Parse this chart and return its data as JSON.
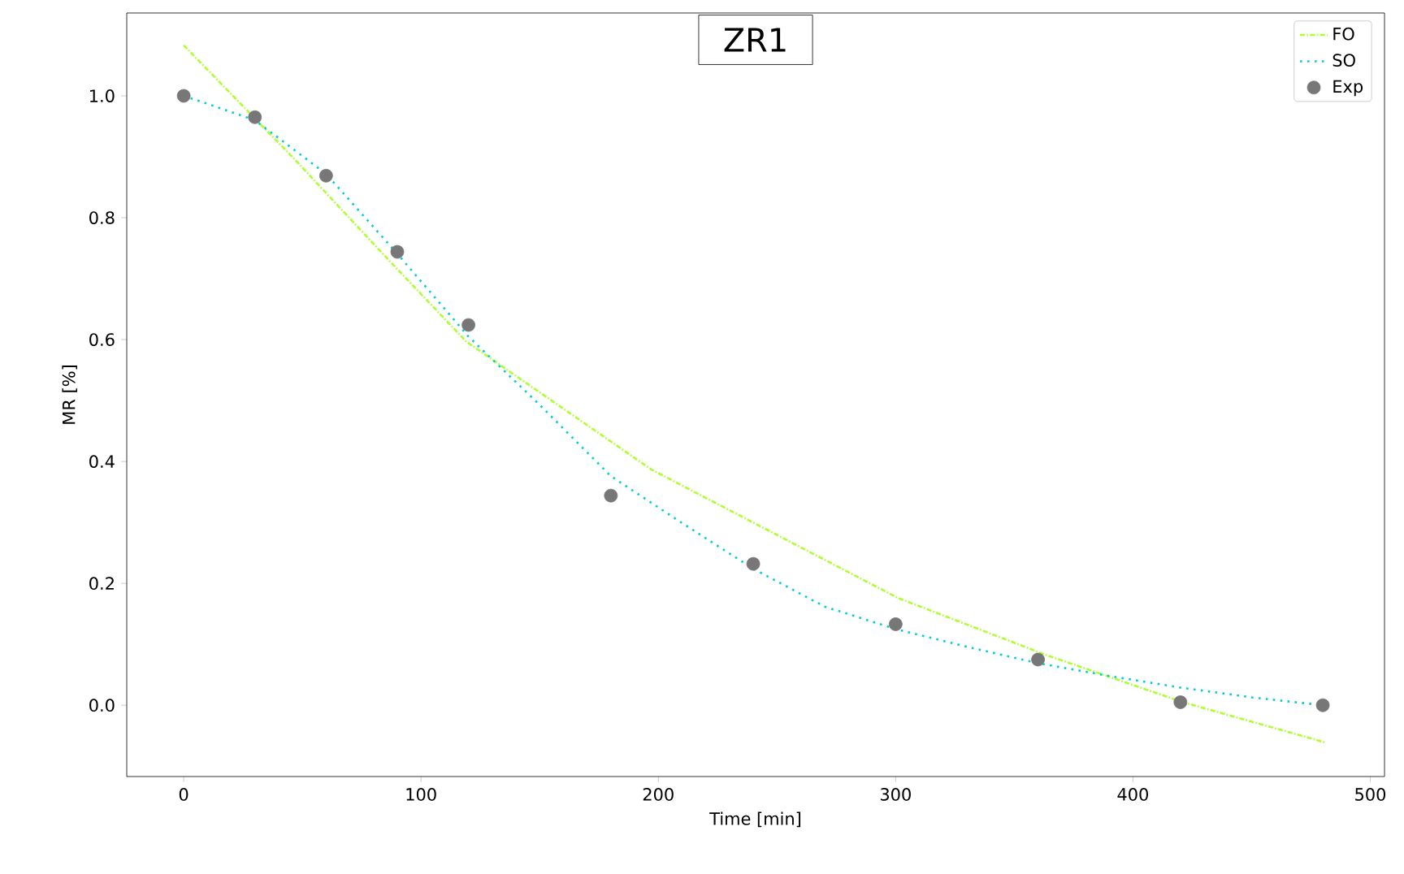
{
  "chart_data": {
    "type": "line",
    "title": "ZR1",
    "xlabel": "Time [min]",
    "ylabel": "MR [%]",
    "xlim": [
      -24,
      506
    ],
    "ylim": [
      -0.117,
      1.136
    ],
    "xticks": [
      0,
      100,
      200,
      300,
      400,
      500
    ],
    "yticks": [
      {
        "value": 0,
        "label": "0.0"
      },
      {
        "value": 0.2,
        "label": "0.2"
      },
      {
        "value": 0.4,
        "label": "0.4"
      },
      {
        "value": 0.6,
        "label": "0.6"
      },
      {
        "value": 0.8,
        "label": "0.8"
      },
      {
        "value": 1.0,
        "label": "1.0"
      }
    ],
    "legend": "top right",
    "series": [
      {
        "name": "FO",
        "type": "line",
        "marker": "none",
        "line_style": "dashed",
        "color": "#adff2f",
        "x": [
          0,
          46,
          87,
          119,
          197,
          301,
          363,
          421,
          481
        ],
        "values": [
          1.083,
          0.899,
          0.728,
          0.597,
          0.387,
          0.176,
          0.083,
          0.005,
          -0.061
        ]
      },
      {
        "name": "SO",
        "type": "line",
        "marker": "none",
        "line_style": "dotted",
        "color": "#00ced1",
        "x": [
          0,
          10,
          30,
          60,
          90,
          120,
          150,
          180,
          210,
          240,
          270,
          300,
          330,
          360,
          390,
          420,
          450,
          480
        ],
        "values": [
          1.0,
          0.987,
          0.96,
          0.872,
          0.741,
          0.605,
          0.493,
          0.376,
          0.299,
          0.224,
          0.162,
          0.125,
          0.096,
          0.069,
          0.048,
          0.029,
          0.013,
          0.0
        ]
      },
      {
        "name": "Exp",
        "type": "scatter",
        "marker": "circle",
        "color": "#777777",
        "x": [
          0,
          30,
          60,
          90,
          120,
          180,
          240,
          300,
          360,
          420,
          480
        ],
        "values": [
          1.0,
          0.965,
          0.869,
          0.744,
          0.624,
          0.344,
          0.232,
          0.133,
          0.075,
          0.005,
          0.0
        ]
      }
    ]
  }
}
